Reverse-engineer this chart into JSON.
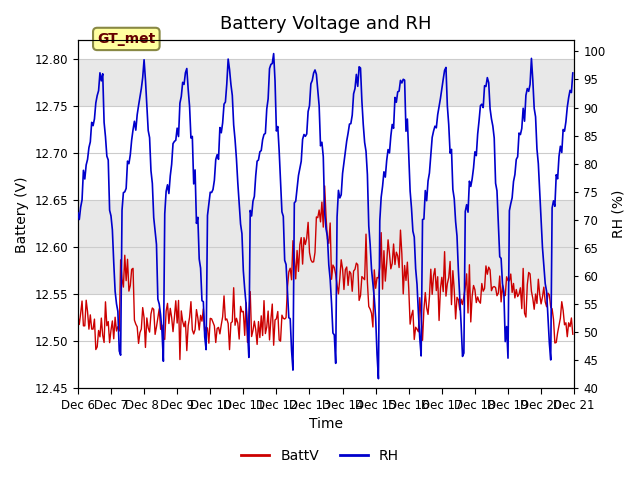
{
  "title": "Battery Voltage and RH",
  "xlabel": "Time",
  "ylabel_left": "Battery (V)",
  "ylabel_right": "RH (%)",
  "batt_color": "#cc0000",
  "rh_color": "#0000cc",
  "ylim_left": [
    12.45,
    12.82
  ],
  "ylim_right": [
    40,
    102
  ],
  "yticks_left": [
    12.45,
    12.5,
    12.55,
    12.6,
    12.65,
    12.7,
    12.75,
    12.8
  ],
  "yticks_right": [
    40,
    45,
    50,
    55,
    60,
    65,
    70,
    75,
    80,
    85,
    90,
    95,
    100
  ],
  "background_color": "#ffffff",
  "plot_bg_color": "#ffffff",
  "grid_color": "#cccccc",
  "band_color": "#e8e8e8",
  "n_days": 15,
  "annotation_text": "GT_met",
  "annotation_box_color": "#ffffa0",
  "annotation_box_edge": "#888844",
  "annotation_text_color": "#660000",
  "title_fontsize": 13,
  "label_fontsize": 10,
  "tick_fontsize": 8.5,
  "legend_fontsize": 10,
  "legend_labels": [
    "BattV",
    "RH"
  ],
  "xticklabels": [
    "Dec 6",
    "Dec 7",
    "Dec 8 ",
    "Dec 9",
    "Dec 10",
    "Dec 11",
    "Dec 12",
    "Dec 13",
    "Dec 14",
    "Dec 15",
    "Dec 16",
    "Dec 17",
    "Dec 18",
    "Dec 19",
    "Dec 20",
    "Dec 21"
  ],
  "xtick_positions": [
    0,
    24,
    48,
    72,
    96,
    120,
    144,
    168,
    192,
    216,
    240,
    264,
    288,
    312,
    336,
    360
  ]
}
